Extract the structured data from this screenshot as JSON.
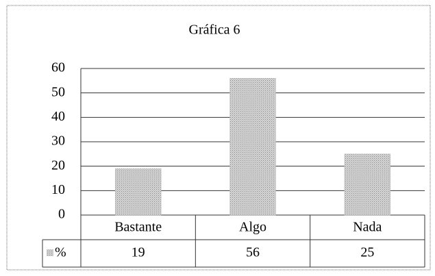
{
  "chart_data": {
    "type": "bar",
    "title": "Gráfica 6",
    "categories": [
      "Bastante",
      "Algo",
      "Nada"
    ],
    "series": [
      {
        "name": "%",
        "color": "#b8b8b8",
        "values": [
          19,
          56,
          25
        ]
      }
    ],
    "ylim": [
      0,
      60
    ],
    "yticks": [
      0,
      10,
      20,
      30,
      40,
      50,
      60
    ],
    "grid": true
  }
}
